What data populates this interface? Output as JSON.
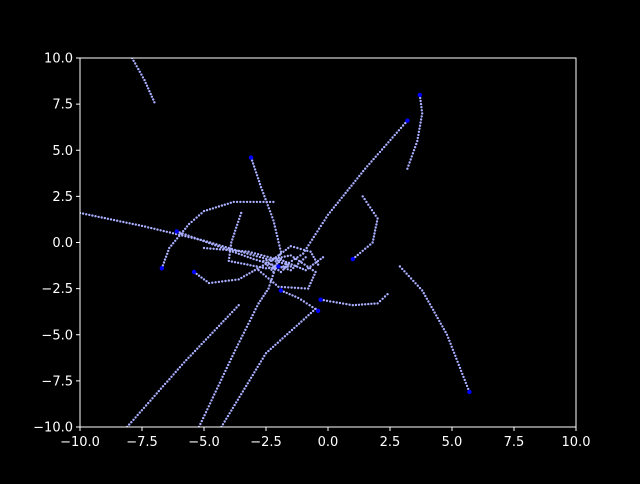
{
  "chart_data": {
    "type": "scatter",
    "title": "",
    "xlabel": "",
    "ylabel": "",
    "xlim": [
      -10,
      10
    ],
    "ylim": [
      -10,
      10
    ],
    "xticks": [
      -10,
      -7.5,
      -5,
      -2.5,
      0,
      2.5,
      5,
      7.5,
      10
    ],
    "yticks": [
      -10,
      -7.5,
      -5,
      -2.5,
      0,
      2.5,
      5,
      7.5,
      10
    ],
    "xtick_labels": [
      "−10.0",
      "−7.5",
      "−5.0",
      "−2.5",
      "0.0",
      "2.5",
      "5.0",
      "7.5",
      "10.0"
    ],
    "ytick_labels": [
      "−10.0",
      "−7.5",
      "−5.0",
      "−2.5",
      "0.0",
      "2.5",
      "5.0",
      "7.5",
      "10.0"
    ],
    "grid": false,
    "colors": {
      "background": "#000000",
      "axes": "#ffffff",
      "trail": "#aab0ff",
      "head": "#0000ff"
    },
    "trails": [
      {
        "points": [
          [
            -7.9,
            10.0
          ],
          [
            -7.4,
            8.8
          ],
          [
            -7.0,
            7.6
          ]
        ]
      },
      {
        "points": [
          [
            3.7,
            8.0
          ],
          [
            3.8,
            7.0
          ],
          [
            3.6,
            5.5
          ],
          [
            3.2,
            4.0
          ]
        ]
      },
      {
        "points": [
          [
            3.2,
            6.6
          ],
          [
            1.5,
            4.0
          ],
          [
            0.0,
            1.5
          ],
          [
            -1.0,
            -0.6
          ],
          [
            -1.8,
            -1.3
          ]
        ]
      },
      {
        "points": [
          [
            -3.1,
            4.6
          ],
          [
            -2.7,
            3.0
          ],
          [
            -2.2,
            1.2
          ],
          [
            -1.9,
            -0.5
          ],
          [
            -2.1,
            -1.3
          ],
          [
            -2.4,
            -2.5
          ],
          [
            -2.8,
            -3.3
          ]
        ]
      },
      {
        "points": [
          [
            -10.0,
            1.6
          ],
          [
            -7.5,
            0.9
          ],
          [
            -5.0,
            0.1
          ],
          [
            -3.0,
            -0.7
          ],
          [
            -1.6,
            -1.2
          ]
        ]
      },
      {
        "points": [
          [
            -6.7,
            -1.4
          ],
          [
            -6.4,
            -0.3
          ],
          [
            -5.6,
            1.0
          ],
          [
            -5.0,
            1.7
          ],
          [
            -3.8,
            2.2
          ],
          [
            -2.2,
            2.2
          ]
        ]
      },
      {
        "points": [
          [
            -6.1,
            0.6
          ],
          [
            -3.0,
            -0.9
          ],
          [
            -1.5,
            -1.5
          ],
          [
            -0.9,
            -0.8
          ]
        ]
      },
      {
        "points": [
          [
            -5.4,
            -1.6
          ],
          [
            -4.8,
            -2.2
          ],
          [
            -3.6,
            -2.0
          ],
          [
            -2.3,
            -1.0
          ],
          [
            -1.5,
            -0.2
          ],
          [
            -0.7,
            -0.5
          ],
          [
            -0.4,
            -1.2
          ]
        ]
      },
      {
        "points": [
          [
            -3.5,
            1.6
          ],
          [
            -3.9,
            0.0
          ],
          [
            -4.0,
            -1.0
          ],
          [
            -2.5,
            -1.4
          ],
          [
            -1.5,
            -1.3
          ]
        ]
      },
      {
        "points": [
          [
            -5.0,
            -0.3
          ],
          [
            -3.2,
            -0.5
          ],
          [
            -1.8,
            -1.0
          ],
          [
            -0.9,
            -1.5
          ],
          [
            -0.2,
            -0.8
          ]
        ]
      },
      {
        "points": [
          [
            -2.8,
            -1.5
          ],
          [
            -2.0,
            -2.4
          ],
          [
            -0.8,
            -2.5
          ],
          [
            -0.5,
            -1.6
          ],
          [
            -1.5,
            -0.7
          ],
          [
            -2.6,
            -1.0
          ],
          [
            -2.2,
            -1.6
          ]
        ]
      },
      {
        "points": [
          [
            -1.9,
            -2.6
          ],
          [
            -1.2,
            -3.0
          ],
          [
            -0.4,
            -3.7
          ]
        ]
      },
      {
        "points": [
          [
            -0.3,
            -3.1
          ],
          [
            1.0,
            -3.4
          ],
          [
            2.0,
            -3.3
          ],
          [
            2.4,
            -2.8
          ]
        ]
      },
      {
        "points": [
          [
            1.0,
            -0.9
          ],
          [
            1.8,
            0.0
          ],
          [
            2.0,
            1.3
          ],
          [
            1.4,
            2.5
          ]
        ]
      },
      {
        "points": [
          [
            2.9,
            -1.3
          ],
          [
            3.8,
            -2.6
          ],
          [
            4.8,
            -5.0
          ],
          [
            5.7,
            -8.1
          ]
        ]
      },
      {
        "points": [
          [
            -0.5,
            -3.6
          ],
          [
            -2.5,
            -6.0
          ],
          [
            -4.3,
            -10.0
          ]
        ]
      },
      {
        "points": [
          [
            -2.8,
            -3.3
          ],
          [
            -3.8,
            -6.0
          ],
          [
            -5.2,
            -10.0
          ]
        ]
      },
      {
        "points": [
          [
            -3.6,
            -3.4
          ],
          [
            -5.8,
            -6.5
          ],
          [
            -8.1,
            -10.0
          ]
        ]
      },
      {
        "points": [
          [
            -2.3,
            -1.2
          ],
          [
            -1.9,
            -1.6
          ],
          [
            -1.6,
            -1.2
          ],
          [
            -1.9,
            -0.9
          ],
          [
            -2.2,
            -1.4
          ]
        ]
      }
    ],
    "heads": [
      [
        3.7,
        8.0
      ],
      [
        3.2,
        6.6
      ],
      [
        -3.1,
        4.6
      ],
      [
        -6.1,
        0.6
      ],
      [
        -6.7,
        -1.4
      ],
      [
        -5.4,
        -1.6
      ],
      [
        -1.9,
        -2.6
      ],
      [
        -0.4,
        -3.7
      ],
      [
        -0.3,
        -3.1
      ],
      [
        1.0,
        -0.9
      ],
      [
        5.7,
        -8.1
      ],
      [
        -2.0,
        -1.3
      ]
    ]
  }
}
